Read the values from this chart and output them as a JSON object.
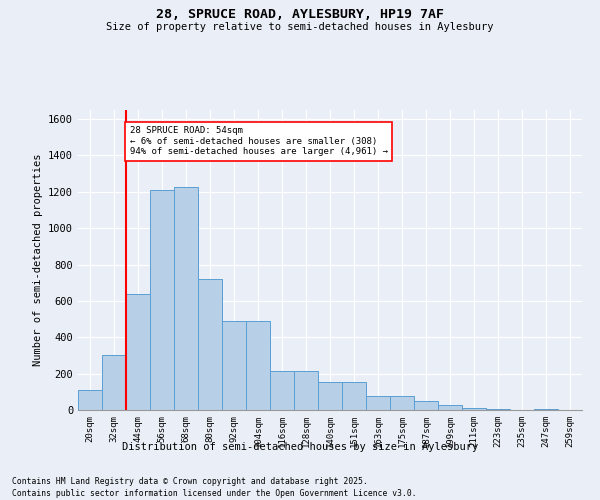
{
  "title1": "28, SPRUCE ROAD, AYLESBURY, HP19 7AF",
  "title2": "Size of property relative to semi-detached houses in Aylesbury",
  "xlabel": "Distribution of semi-detached houses by size in Aylesbury",
  "ylabel": "Number of semi-detached properties",
  "categories": [
    "20sqm",
    "32sqm",
    "44sqm",
    "56sqm",
    "68sqm",
    "80sqm",
    "92sqm",
    "104sqm",
    "116sqm",
    "128sqm",
    "140sqm",
    "151sqm",
    "163sqm",
    "175sqm",
    "187sqm",
    "199sqm",
    "211sqm",
    "223sqm",
    "235sqm",
    "247sqm",
    "259sqm"
  ],
  "values": [
    110,
    300,
    640,
    1210,
    1225,
    720,
    490,
    490,
    215,
    215,
    155,
    155,
    75,
    75,
    50,
    25,
    10,
    5,
    0,
    5,
    0
  ],
  "bar_color": "#b8cfe8",
  "bar_edge_color": "#5a9fd4",
  "vline_color": "red",
  "vline_bar_index": 2.5,
  "annotation_text": "28 SPRUCE ROAD: 54sqm\n← 6% of semi-detached houses are smaller (308)\n94% of semi-detached houses are larger (4,961) →",
  "ylim": [
    0,
    1650
  ],
  "yticks": [
    0,
    200,
    400,
    600,
    800,
    1000,
    1200,
    1400,
    1600
  ],
  "bg_color": "#eaeff7",
  "grid_color": "#ffffff",
  "footer1": "Contains HM Land Registry data © Crown copyright and database right 2025.",
  "footer2": "Contains public sector information licensed under the Open Government Licence v3.0."
}
